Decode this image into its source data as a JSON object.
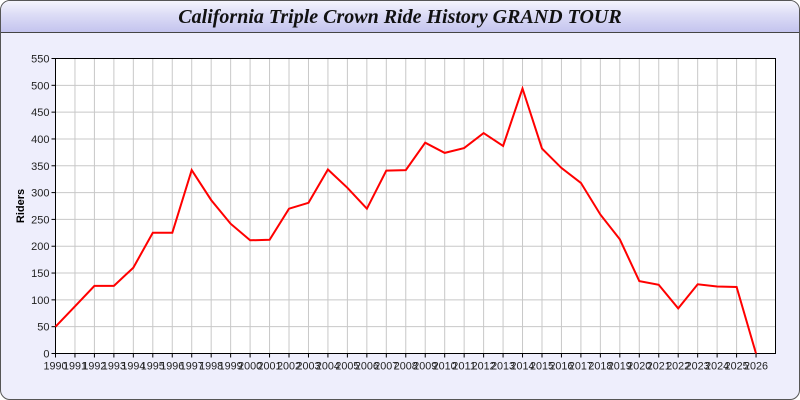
{
  "chart_data": {
    "type": "line",
    "title": "California Triple Crown Ride History GRAND TOUR",
    "xlabel": "",
    "ylabel": "Riders",
    "xlim": [
      1990,
      2027
    ],
    "ylim": [
      0,
      550
    ],
    "yticks": [
      0,
      50,
      100,
      150,
      200,
      250,
      300,
      350,
      400,
      450,
      500,
      550
    ],
    "grid": true,
    "series_color": "#ff0000",
    "x": [
      1990,
      1991,
      1992,
      1993,
      1994,
      1995,
      1996,
      1997,
      1998,
      1999,
      2000,
      2001,
      2002,
      2003,
      2004,
      2005,
      2006,
      2007,
      2008,
      2009,
      2010,
      2011,
      2012,
      2013,
      2014,
      2015,
      2016,
      2017,
      2018,
      2019,
      2020,
      2021,
      2022,
      2023,
      2024,
      2025,
      2026
    ],
    "values": [
      50,
      88,
      126,
      126,
      160,
      225,
      225,
      342,
      286,
      242,
      211,
      212,
      270,
      281,
      343,
      309,
      270,
      341,
      342,
      393,
      374,
      383,
      411,
      387,
      494,
      382,
      346,
      318,
      259,
      213,
      135,
      128,
      84,
      129,
      125,
      124,
      0
    ]
  }
}
